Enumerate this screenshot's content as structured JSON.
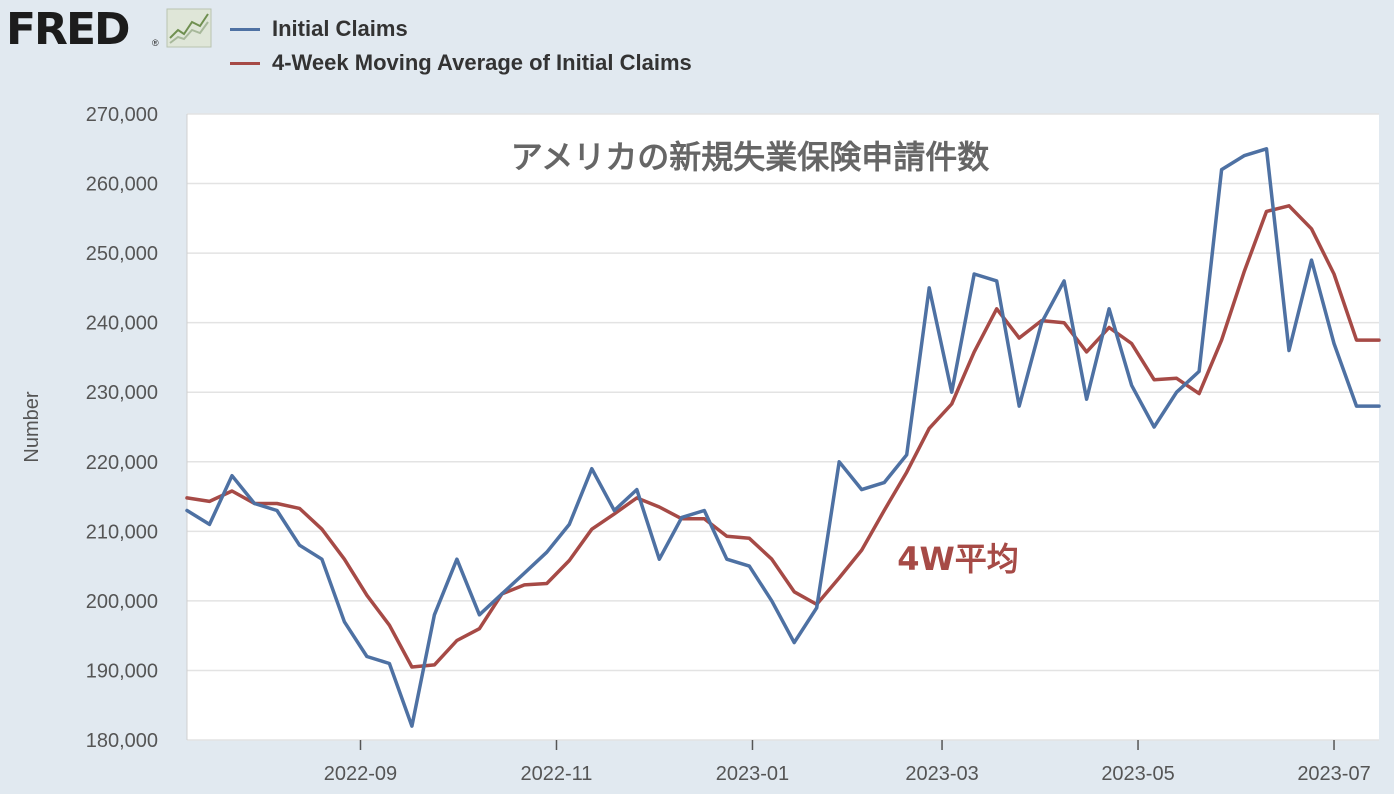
{
  "header": {
    "logo_text": "FRED",
    "logo_mark": "®",
    "logo_icon": "line-chart-icon"
  },
  "colors": {
    "series_initial": "#4e71a3",
    "series_avg": "#a64a46",
    "background": "#e1e9f0",
    "plot_background": "#ffffff"
  },
  "chart_data": {
    "type": "line",
    "title": "アメリカの新規失業保険申請件数",
    "annotation": "4W平均",
    "ylabel": "Number",
    "xlabel": "",
    "ylim": [
      180000,
      270000
    ],
    "yticks": [
      180000,
      190000,
      200000,
      210000,
      220000,
      230000,
      240000,
      250000,
      260000,
      270000
    ],
    "ytick_labels": [
      "180,000",
      "190,000",
      "200,000",
      "210,000",
      "220,000",
      "230,000",
      "240,000",
      "250,000",
      "260,000",
      "270,000"
    ],
    "xlim": [
      "2022-07-09",
      "2023-07-15"
    ],
    "xticks": [
      "2022-09-01",
      "2022-11-01",
      "2023-01-01",
      "2023-03-01",
      "2023-05-01",
      "2023-07-01"
    ],
    "xtick_labels": [
      "2022-09",
      "2022-11",
      "2023-01",
      "2023-03",
      "2023-05",
      "2023-07"
    ],
    "grid": true,
    "legend_position": "top-left",
    "x": [
      "2022-07-09",
      "2022-07-16",
      "2022-07-23",
      "2022-07-30",
      "2022-08-06",
      "2022-08-13",
      "2022-08-20",
      "2022-08-27",
      "2022-09-03",
      "2022-09-10",
      "2022-09-17",
      "2022-09-24",
      "2022-10-01",
      "2022-10-08",
      "2022-10-15",
      "2022-10-22",
      "2022-10-29",
      "2022-11-05",
      "2022-11-12",
      "2022-11-19",
      "2022-11-26",
      "2022-12-03",
      "2022-12-10",
      "2022-12-17",
      "2022-12-24",
      "2022-12-31",
      "2023-01-07",
      "2023-01-14",
      "2023-01-21",
      "2023-01-28",
      "2023-02-04",
      "2023-02-11",
      "2023-02-18",
      "2023-02-25",
      "2023-03-04",
      "2023-03-11",
      "2023-03-18",
      "2023-03-25",
      "2023-04-01",
      "2023-04-08",
      "2023-04-15",
      "2023-04-22",
      "2023-04-29",
      "2023-05-06",
      "2023-05-13",
      "2023-05-20",
      "2023-05-27",
      "2023-06-03",
      "2023-06-10",
      "2023-06-17",
      "2023-06-24",
      "2023-07-01",
      "2023-07-08",
      "2023-07-15"
    ],
    "series": [
      {
        "name": "Initial Claims",
        "color": "#4e71a3",
        "values": [
          213000,
          211000,
          218000,
          214000,
          213000,
          208000,
          206000,
          197000,
          192000,
          191000,
          182000,
          198000,
          206000,
          198000,
          201000,
          204000,
          207000,
          211000,
          219000,
          213000,
          216000,
          206000,
          212000,
          213000,
          206000,
          205000,
          200000,
          194000,
          199000,
          220000,
          216000,
          217000,
          221000,
          245000,
          230000,
          247000,
          246000,
          228000,
          240000,
          246000,
          229000,
          242000,
          231000,
          225000,
          230000,
          233000,
          262000,
          264000,
          265000,
          236000,
          249000,
          237000,
          228000,
          228000
        ]
      },
      {
        "name": "4-Week Moving Average of Initial Claims",
        "color": "#a64a46",
        "values": [
          214800,
          214300,
          215800,
          214000,
          214000,
          213300,
          210300,
          206000,
          200800,
          196500,
          190500,
          190800,
          194300,
          196000,
          201000,
          202300,
          202500,
          205800,
          210300,
          212500,
          214800,
          213500,
          211800,
          211800,
          209300,
          209000,
          206000,
          201300,
          199500,
          203300,
          207300,
          213000,
          218500,
          224800,
          228300,
          235800,
          242000,
          237800,
          240300,
          240000,
          235800,
          239300,
          237000,
          231800,
          232000,
          229800,
          237500,
          247300,
          256000,
          256800,
          253500,
          247000,
          237500,
          237500
        ]
      }
    ]
  }
}
